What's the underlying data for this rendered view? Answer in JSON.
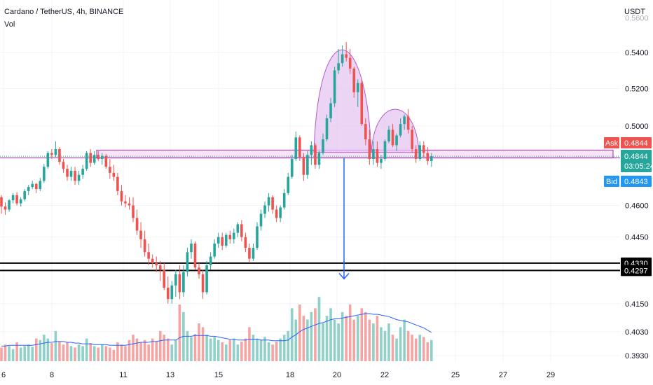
{
  "header": {
    "title": "Cardano / TetherUS, 4h, BINANCE",
    "volume_label": "Vol"
  },
  "colors": {
    "up": "#26a69a",
    "down": "#ef5350",
    "up_volume": "#8fd0c8",
    "down_volume": "#f4a5a3",
    "volume_ma": "#2962ff",
    "pattern_fill": "#e6c6f0",
    "pattern_stroke": "#b45bc9",
    "zone_fill": "#f6dcf5",
    "zone_stroke": "#9b27af",
    "arrow": "#2962ff",
    "support_line": "#000000",
    "ask_tag": "#ef5350",
    "price_tag": "#26a69a",
    "bid_tag": "#2196f3",
    "grid": "#f0f3fa"
  },
  "chart_data": {
    "type": "candlestick",
    "symbol": "Cardano / TetherUS",
    "interval": "4h",
    "exchange": "BINANCE",
    "y_axis": {
      "unit_label": "USDT",
      "ticks": [
        "0.5400",
        "0.5200",
        "0.5000",
        "0.4600",
        "0.4450",
        "0.4150",
        "0.4030",
        "0.3930"
      ],
      "top_partial_tick": "0.5600",
      "scale": "log",
      "ylim": [
        0.3915,
        0.5615
      ]
    },
    "x_axis": {
      "tick_labels": [
        "6",
        "8",
        "11",
        "13",
        "15",
        "18",
        "20",
        "22",
        "25",
        "27",
        "29"
      ]
    },
    "ohlc": [
      [
        0.464,
        0.465,
        0.456,
        0.4595
      ],
      [
        0.4595,
        0.4615,
        0.4555,
        0.458
      ],
      [
        0.458,
        0.463,
        0.457,
        0.4625
      ],
      [
        0.4625,
        0.466,
        0.461,
        0.465
      ],
      [
        0.465,
        0.4665,
        0.46,
        0.461
      ],
      [
        0.461,
        0.464,
        0.4595,
        0.463
      ],
      [
        0.463,
        0.468,
        0.462,
        0.467
      ],
      [
        0.467,
        0.47,
        0.465,
        0.469
      ],
      [
        0.469,
        0.472,
        0.468,
        0.4705
      ],
      [
        0.4705,
        0.471,
        0.466,
        0.468
      ],
      [
        0.468,
        0.4735,
        0.467,
        0.472
      ],
      [
        0.472,
        0.4805,
        0.471,
        0.479
      ],
      [
        0.479,
        0.487,
        0.478,
        0.486
      ],
      [
        0.486,
        0.488,
        0.483,
        0.485
      ],
      [
        0.485,
        0.492,
        0.484,
        0.488
      ],
      [
        0.488,
        0.489,
        0.48,
        0.4815
      ],
      [
        0.4815,
        0.483,
        0.476,
        0.478
      ],
      [
        0.478,
        0.48,
        0.472,
        0.474
      ],
      [
        0.474,
        0.479,
        0.472,
        0.477
      ],
      [
        0.477,
        0.479,
        0.47,
        0.472
      ],
      [
        0.472,
        0.477,
        0.47,
        0.475
      ],
      [
        0.475,
        0.48,
        0.473,
        0.478
      ],
      [
        0.478,
        0.487,
        0.477,
        0.486
      ],
      [
        0.486,
        0.488,
        0.479,
        0.481
      ],
      [
        0.481,
        0.487,
        0.48,
        0.485
      ],
      [
        0.485,
        0.487,
        0.482,
        0.483
      ],
      [
        0.483,
        0.486,
        0.48,
        0.4845
      ],
      [
        0.4845,
        0.4855,
        0.478,
        0.479
      ],
      [
        0.479,
        0.483,
        0.473,
        0.476
      ],
      [
        0.476,
        0.48,
        0.472,
        0.474
      ],
      [
        0.474,
        0.476,
        0.465,
        0.467
      ],
      [
        0.467,
        0.47,
        0.46,
        0.462
      ],
      [
        0.462,
        0.465,
        0.459,
        0.461
      ],
      [
        0.461,
        0.464,
        0.458,
        0.46
      ],
      [
        0.46,
        0.464,
        0.452,
        0.454
      ],
      [
        0.454,
        0.458,
        0.446,
        0.448
      ],
      [
        0.448,
        0.452,
        0.44,
        0.444
      ],
      [
        0.444,
        0.448,
        0.436,
        0.438
      ],
      [
        0.438,
        0.442,
        0.432,
        0.435
      ],
      [
        0.435,
        0.437,
        0.431,
        0.433
      ],
      [
        0.433,
        0.436,
        0.429,
        0.432
      ],
      [
        0.432,
        0.434,
        0.425,
        0.43
      ],
      [
        0.43,
        0.433,
        0.421,
        0.422
      ],
      [
        0.422,
        0.427,
        0.415,
        0.417
      ],
      [
        0.417,
        0.425,
        0.415,
        0.423
      ],
      [
        0.423,
        0.43,
        0.418,
        0.428
      ],
      [
        0.428,
        0.432,
        0.417,
        0.42
      ],
      [
        0.42,
        0.432,
        0.418,
        0.429
      ],
      [
        0.429,
        0.44,
        0.427,
        0.438
      ],
      [
        0.438,
        0.444,
        0.435,
        0.442
      ],
      [
        0.442,
        0.443,
        0.43,
        0.431
      ],
      [
        0.431,
        0.433,
        0.426,
        0.428
      ],
      [
        0.428,
        0.43,
        0.417,
        0.42
      ],
      [
        0.42,
        0.434,
        0.419,
        0.432
      ],
      [
        0.432,
        0.438,
        0.43,
        0.436
      ],
      [
        0.436,
        0.444,
        0.435,
        0.442
      ],
      [
        0.442,
        0.447,
        0.44,
        0.445
      ],
      [
        0.445,
        0.447,
        0.439,
        0.441
      ],
      [
        0.441,
        0.447,
        0.44,
        0.446
      ],
      [
        0.446,
        0.448,
        0.442,
        0.444
      ],
      [
        0.444,
        0.449,
        0.442,
        0.447
      ],
      [
        0.447,
        0.452,
        0.445,
        0.451
      ],
      [
        0.451,
        0.453,
        0.443,
        0.445
      ],
      [
        0.445,
        0.447,
        0.438,
        0.44
      ],
      [
        0.44,
        0.442,
        0.433,
        0.435
      ],
      [
        0.435,
        0.442,
        0.434,
        0.44
      ],
      [
        0.44,
        0.452,
        0.439,
        0.45
      ],
      [
        0.45,
        0.458,
        0.448,
        0.456
      ],
      [
        0.456,
        0.462,
        0.454,
        0.46
      ],
      [
        0.46,
        0.466,
        0.457,
        0.464
      ],
      [
        0.464,
        0.465,
        0.456,
        0.458
      ],
      [
        0.458,
        0.46,
        0.452,
        0.454
      ],
      [
        0.454,
        0.46,
        0.452,
        0.459
      ],
      [
        0.459,
        0.468,
        0.458,
        0.466
      ],
      [
        0.466,
        0.476,
        0.465,
        0.474
      ],
      [
        0.474,
        0.485,
        0.473,
        0.483
      ],
      [
        0.483,
        0.497,
        0.482,
        0.494
      ],
      [
        0.494,
        0.495,
        0.482,
        0.484
      ],
      [
        0.484,
        0.486,
        0.472,
        0.475
      ],
      [
        0.475,
        0.487,
        0.473,
        0.485
      ],
      [
        0.485,
        0.492,
        0.48,
        0.49
      ],
      [
        0.49,
        0.491,
        0.478,
        0.48
      ],
      [
        0.48,
        0.487,
        0.478,
        0.486
      ],
      [
        0.486,
        0.496,
        0.485,
        0.493
      ],
      [
        0.493,
        0.506,
        0.492,
        0.504
      ],
      [
        0.504,
        0.515,
        0.502,
        0.512
      ],
      [
        0.512,
        0.532,
        0.51,
        0.53
      ],
      [
        0.53,
        0.542,
        0.528,
        0.534
      ],
      [
        0.534,
        0.544,
        0.532,
        0.539
      ],
      [
        0.539,
        0.546,
        0.535,
        0.537
      ],
      [
        0.537,
        0.542,
        0.528,
        0.531
      ],
      [
        0.531,
        0.532,
        0.515,
        0.518
      ],
      [
        0.518,
        0.525,
        0.51,
        0.523
      ],
      [
        0.523,
        0.525,
        0.5,
        0.501
      ],
      [
        0.501,
        0.504,
        0.49,
        0.493
      ],
      [
        0.493,
        0.498,
        0.48,
        0.483
      ],
      [
        0.483,
        0.492,
        0.48,
        0.488
      ],
      [
        0.488,
        0.492,
        0.479,
        0.481
      ],
      [
        0.481,
        0.485,
        0.478,
        0.483
      ],
      [
        0.483,
        0.493,
        0.482,
        0.492
      ],
      [
        0.492,
        0.5,
        0.491,
        0.498
      ],
      [
        0.498,
        0.501,
        0.489,
        0.49
      ],
      [
        0.49,
        0.496,
        0.487,
        0.495
      ],
      [
        0.495,
        0.504,
        0.494,
        0.501
      ],
      [
        0.501,
        0.506,
        0.498,
        0.505
      ],
      [
        0.505,
        0.509,
        0.496,
        0.498
      ],
      [
        0.498,
        0.5,
        0.486,
        0.488
      ],
      [
        0.488,
        0.49,
        0.481,
        0.483
      ],
      [
        0.483,
        0.492,
        0.482,
        0.49
      ],
      [
        0.49,
        0.492,
        0.484,
        0.486
      ],
      [
        0.486,
        0.489,
        0.48,
        0.482
      ],
      [
        0.482,
        0.486,
        0.479,
        0.4844
      ]
    ],
    "volume_relative": [
      0.18,
      0.22,
      0.2,
      0.16,
      0.25,
      0.18,
      0.2,
      0.22,
      0.19,
      0.3,
      0.28,
      0.35,
      0.3,
      0.24,
      0.4,
      0.26,
      0.22,
      0.25,
      0.2,
      0.18,
      0.22,
      0.2,
      0.3,
      0.24,
      0.2,
      0.18,
      0.22,
      0.2,
      0.18,
      0.15,
      0.25,
      0.22,
      0.2,
      0.28,
      0.35,
      0.3,
      0.25,
      0.28,
      0.22,
      0.3,
      0.26,
      0.4,
      0.35,
      0.3,
      0.22,
      0.28,
      0.75,
      0.65,
      0.4,
      0.32,
      0.36,
      0.5,
      0.45,
      0.35,
      0.3,
      0.32,
      0.28,
      0.25,
      0.22,
      0.28,
      0.3,
      0.22,
      0.26,
      0.3,
      0.45,
      0.35,
      0.3,
      0.28,
      0.32,
      0.25,
      0.22,
      0.26,
      0.3,
      0.35,
      0.4,
      0.7,
      0.55,
      0.75,
      0.6,
      0.55,
      0.65,
      0.7,
      0.85,
      0.5,
      0.6,
      0.7,
      0.55,
      0.5,
      0.65,
      0.6,
      0.75,
      0.55,
      0.6,
      0.7,
      0.65,
      0.55,
      0.5,
      0.6,
      0.45,
      0.4,
      0.5,
      0.35,
      0.3,
      0.45,
      0.55,
      0.4,
      0.35,
      0.3,
      0.35,
      0.32,
      0.25,
      0.28
    ],
    "volume_ma_relative": [
      0.2,
      0.2,
      0.21,
      0.21,
      0.21,
      0.21,
      0.21,
      0.21,
      0.21,
      0.22,
      0.23,
      0.24,
      0.25,
      0.25,
      0.26,
      0.26,
      0.26,
      0.25,
      0.25,
      0.24,
      0.24,
      0.23,
      0.23,
      0.23,
      0.22,
      0.22,
      0.22,
      0.22,
      0.21,
      0.21,
      0.21,
      0.21,
      0.21,
      0.22,
      0.23,
      0.24,
      0.25,
      0.25,
      0.25,
      0.26,
      0.26,
      0.27,
      0.28,
      0.28,
      0.28,
      0.28,
      0.31,
      0.33,
      0.33,
      0.33,
      0.34,
      0.34,
      0.34,
      0.34,
      0.33,
      0.33,
      0.32,
      0.31,
      0.3,
      0.29,
      0.29,
      0.28,
      0.28,
      0.28,
      0.29,
      0.29,
      0.29,
      0.28,
      0.28,
      0.28,
      0.27,
      0.27,
      0.27,
      0.27,
      0.28,
      0.32,
      0.35,
      0.39,
      0.42,
      0.44,
      0.46,
      0.48,
      0.5,
      0.51,
      0.53,
      0.55,
      0.56,
      0.56,
      0.57,
      0.58,
      0.59,
      0.6,
      0.61,
      0.62,
      0.63,
      0.63,
      0.62,
      0.62,
      0.61,
      0.6,
      0.59,
      0.57,
      0.55,
      0.54,
      0.53,
      0.52,
      0.5,
      0.48,
      0.46,
      0.44,
      0.41,
      0.38
    ],
    "annotations": {
      "neckline_zone": [
        0.4835,
        0.4875
      ],
      "head_and_shoulders": {
        "head_peak": 0.547,
        "right_shoulder_peak": 0.509,
        "base": 0.487
      },
      "target_arrow": {
        "from": 0.4855,
        "to": 0.4297
      },
      "support_lines": [
        0.433,
        0.4297
      ]
    },
    "price_tags": [
      {
        "label": "Ask",
        "value": "0.4844",
        "price": 0.4844
      },
      {
        "label": "",
        "value": "0.4844",
        "time": "03:05:24",
        "price": 0.4844
      },
      {
        "label": "Bid",
        "value": "0.4843",
        "price": 0.4843
      },
      {
        "label": "",
        "value": "0.4330",
        "price": 0.433
      },
      {
        "label": "",
        "value": "0.4297",
        "price": 0.4297
      }
    ],
    "current_price": 0.4844
  }
}
